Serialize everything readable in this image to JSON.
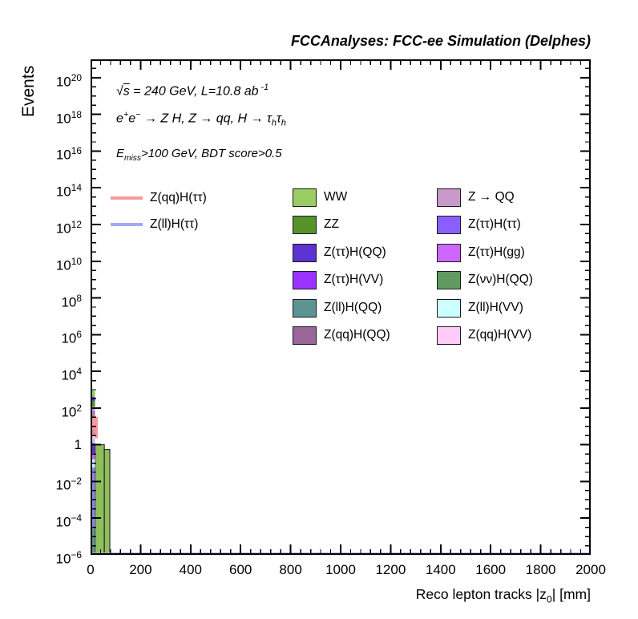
{
  "title": "FCCAnalyses: FCC-ee Simulation (Delphes)",
  "y_axis": {
    "label": "Events",
    "tick_exponents": [
      20,
      18,
      16,
      14,
      12,
      10,
      8,
      6,
      4,
      2,
      0,
      -2,
      -4,
      -6
    ],
    "log_min": -6,
    "log_max": 21,
    "minor_step_decades": 0.5
  },
  "x_axis": {
    "label_a": "Reco lepton tracks |z",
    "label_sub": "0",
    "label_b": "| [mm]",
    "ticks": [
      0,
      200,
      400,
      600,
      800,
      1000,
      1200,
      1400,
      1600,
      1800,
      2000
    ],
    "minor_step": 40,
    "min": 0,
    "max": 2000
  },
  "annotations": {
    "line1": {
      "sqrt_sym": "√",
      "s": "s",
      "rest": " = 240 GeV, L=10.8 ab",
      "sup": "-1"
    },
    "line2": {
      "e1": "e",
      "e1sup": "+",
      "e2": "e",
      "e2sup": "−",
      "mid": " → Z H, Z → qq, H → τ",
      "sub1": "h",
      "tau2": "τ",
      "sub2": "h"
    },
    "line3": {
      "E": "E",
      "sub": "miss",
      "rest": ">100 GeV, BDT score>0.5"
    }
  },
  "legend": {
    "lines": [
      {
        "label": "Z(qq)H(ττ)",
        "color": "#F8999E"
      },
      {
        "label": "Z(ll)H(ττ)",
        "color": "#A3A8F0"
      }
    ],
    "col1": [
      {
        "label": "WW",
        "color": "#9ACD61"
      },
      {
        "label": "ZZ",
        "color": "#579229"
      },
      {
        "label": "Z(ττ)H(QQ)",
        "color": "#5C33CF"
      },
      {
        "label": "Z(ττ)H(VV)",
        "color": "#9933FF"
      },
      {
        "label": "Z(ll)H(QQ)",
        "color": "#5E9393"
      },
      {
        "label": "Z(qq)H(QQ)",
        "color": "#9A679A"
      }
    ],
    "col2": [
      {
        "label": "Z → QQ",
        "color": "#C999CC"
      },
      {
        "label": "Z(ττ)H(ττ)",
        "color": "#8A5FFF"
      },
      {
        "label": "Z(ττ)H(gg)",
        "color": "#CC66FF"
      },
      {
        "label": "Z(νν)H(QQ)",
        "color": "#609A61"
      },
      {
        "label": "Z(ll)H(VV)",
        "color": "#CCFFFF"
      },
      {
        "label": "Z(qq)H(VV)",
        "color": "#FFCCF9"
      }
    ]
  },
  "chart_data": {
    "type": "bar",
    "subtype": "stacked-histogram-logy",
    "title": "FCCAnalyses: FCC-ee Simulation (Delphes)",
    "xlabel": "Reco lepton tracks |z0| [mm]",
    "ylabel": "Events",
    "x_range_mm": [
      0,
      2000
    ],
    "y_scale": "log",
    "y_range_log10": [
      -6,
      21
    ],
    "grid": false,
    "legend_position": "top-inside",
    "series_legend": {
      "signal_lines": [
        "Z(qq)H(ττ)",
        "Z(ll)H(ττ)"
      ],
      "stacked_backgrounds": [
        "WW",
        "ZZ",
        "Z(ττ)H(QQ)",
        "Z(ττ)H(VV)",
        "Z(ll)H(QQ)",
        "Z(qq)H(QQ)",
        "Z → QQ",
        "Z(ττ)H(ττ)",
        "Z(ττ)H(gg)",
        "Z(νν)H(QQ)",
        "Z(ll)H(VV)",
        "Z(qq)H(VV)"
      ]
    },
    "stacked_first_bin": {
      "x_mm": [
        0,
        18
      ],
      "segments_top_to_bottom": [
        {
          "color": "#9ACD61",
          "log10_top": 2.96,
          "log10_bottom": 2.61
        },
        {
          "color": "#5C33CF",
          "log10_top": 2.61,
          "log10_bottom": 2.39
        },
        {
          "color": "#579229",
          "log10_top": 2.39,
          "log10_bottom": 2.08
        },
        {
          "color": "#C999CC",
          "log10_top": 2.08,
          "log10_bottom": 1.82
        },
        {
          "color": "#AD7FAD",
          "log10_top": 1.82,
          "log10_bottom": 1.51
        },
        {
          "color": "#F8999E",
          "log10_top": 1.51,
          "log10_bottom": 0.81
        },
        {
          "color": "#D98A99",
          "log10_top": 0.81,
          "log10_bottom": 0.55
        },
        {
          "color": "#FBC4E0",
          "log10_top": 0.55,
          "log10_bottom": 0.29
        },
        {
          "color": "#ADC2F7",
          "log10_top": 0.29,
          "log10_bottom": 0.07
        },
        {
          "color": "#5C33CF",
          "log10_top": 0.07,
          "log10_bottom": -0.45
        },
        {
          "color": "#CC66FF",
          "log10_top": -0.45,
          "log10_bottom": -0.8
        },
        {
          "color": "#CCFFFF",
          "log10_top": -0.8,
          "log10_bottom": -1.24
        },
        {
          "color": "#8E86EA",
          "log10_top": -1.24,
          "log10_bottom": -4.6
        },
        {
          "color": "#5E9393",
          "log10_top": -4.6,
          "log10_bottom": -6.0
        }
      ]
    },
    "green_bars": [
      {
        "x_mm": [
          18,
          55
        ],
        "log10_top": 0.0,
        "log10_bottom": -6.0,
        "color": "#8FBF5C"
      },
      {
        "x_mm": [
          55,
          77
        ],
        "log10_top": -0.26,
        "log10_bottom": -6.0,
        "color": "#8FBF5C"
      }
    ],
    "salmon_spike": {
      "x_mm": [
        0,
        29
      ],
      "log10_top": 1.51,
      "log10_bottom": 0.35,
      "color": "#F8999E"
    },
    "baseline_line": {
      "x_mm": [
        0,
        2000
      ],
      "log10_y": -5.93,
      "color": "#A3A8F0"
    }
  }
}
